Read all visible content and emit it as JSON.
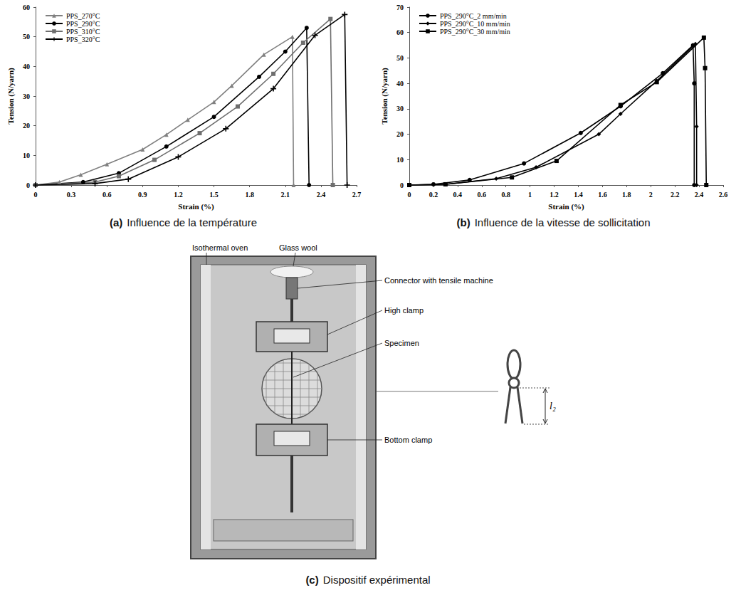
{
  "chart_data": [
    {
      "type": "line",
      "caption": {
        "letter": "(a)",
        "text": "Influence de la température"
      },
      "x_label": "Strain (%)",
      "y_label": "Tension (N/yarn)",
      "xlim": [
        0,
        2.7
      ],
      "xticks": [
        0,
        0.3,
        0.6,
        0.9,
        1.2,
        1.5,
        1.8,
        2.1,
        2.4,
        2.7
      ],
      "ylim": [
        0,
        60
      ],
      "yticks": [
        0,
        10,
        20,
        30,
        40,
        50,
        60
      ],
      "grid": false,
      "legend": "upper left",
      "series": [
        {
          "name": "PPS_270°C",
          "color": "#808080",
          "marker": "triangle",
          "x": [
            0,
            0.2,
            0.38,
            0.6,
            0.9,
            1.1,
            1.28,
            1.5,
            1.65,
            1.92,
            2.16,
            2.17
          ],
          "values": [
            0,
            1,
            3.5,
            7,
            12,
            17,
            22,
            28,
            33.5,
            44,
            50,
            0
          ]
        },
        {
          "name": "PPS_290°C",
          "color": "#000000",
          "marker": "circle",
          "x": [
            0,
            0.4,
            0.7,
            1.1,
            1.5,
            1.88,
            2.1,
            2.28,
            2.3
          ],
          "values": [
            0,
            1,
            4,
            13,
            23,
            36.5,
            45,
            53,
            0
          ]
        },
        {
          "name": "PPS_310°C",
          "color": "#6e6e6e",
          "marker": "square",
          "x": [
            0,
            0.5,
            0.7,
            1.0,
            1.38,
            1.7,
            2.0,
            2.25,
            2.48,
            2.5
          ],
          "values": [
            0,
            1,
            3,
            8.5,
            17.5,
            26.5,
            37.5,
            48,
            56,
            0
          ]
        },
        {
          "name": "PPS_320°C",
          "color": "#000000",
          "marker": "plus",
          "x": [
            0,
            0.5,
            0.78,
            1.2,
            1.6,
            2.0,
            2.35,
            2.6,
            2.62
          ],
          "values": [
            0,
            0.5,
            2,
            9.5,
            19,
            32.5,
            50.5,
            57.5,
            0
          ]
        }
      ]
    },
    {
      "type": "line",
      "caption": {
        "letter": "(b)",
        "text": "Influence de la vitesse de sollicitation"
      },
      "x_label": "Strain (%)",
      "y_label": "Tension (N/yarn)",
      "xlim": [
        0,
        2.6
      ],
      "xticks": [
        0,
        0.2,
        0.4,
        0.6,
        0.8,
        1,
        1.2,
        1.4,
        1.6,
        1.8,
        2,
        2.2,
        2.4,
        2.6
      ],
      "ylim": [
        0,
        70
      ],
      "yticks": [
        0,
        10,
        20,
        30,
        40,
        50,
        60,
        70
      ],
      "grid": false,
      "legend": "upper left",
      "series": [
        {
          "name": "PPS_290°C_2 mm/min",
          "color": "#000000",
          "marker": "circle",
          "x": [
            0,
            0.2,
            0.5,
            0.95,
            1.42,
            1.75,
            2.1,
            2.35,
            2.36,
            2.36
          ],
          "values": [
            0,
            0.3,
            2,
            8.5,
            20.5,
            31,
            44,
            55,
            40,
            0
          ]
        },
        {
          "name": "PPS_290°C_10 mm/min",
          "color": "#000000",
          "marker": "diamond",
          "x": [
            0,
            0.3,
            0.72,
            1.05,
            1.57,
            1.75,
            2.05,
            2.37,
            2.38,
            2.38
          ],
          "values": [
            0,
            0.3,
            2.5,
            7,
            20,
            28,
            41,
            55.5,
            23,
            0
          ]
        },
        {
          "name": "PPS_290°C_30 mm/min",
          "color": "#000000",
          "marker": "square",
          "x": [
            0,
            0.3,
            0.85,
            1.22,
            1.75,
            2.05,
            2.44,
            2.45,
            2.46
          ],
          "values": [
            0,
            0.3,
            3,
            9.5,
            31.5,
            40.5,
            58,
            46,
            0
          ]
        }
      ]
    }
  ],
  "diagram": {
    "caption": {
      "letter": "(c)",
      "text": "Dispositif expérimental"
    },
    "labels": {
      "oven": "Isothermal oven",
      "wool": "Glass wool",
      "connector": "Connector with tensile machine",
      "high_clamp": "High clamp",
      "specimen": "Specimen",
      "bottom_clamp": "Bottom clamp"
    },
    "dimension": "l₂"
  }
}
